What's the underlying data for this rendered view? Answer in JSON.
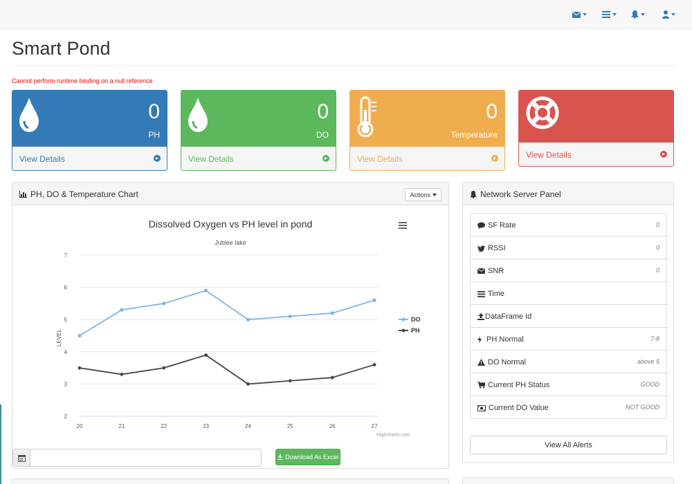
{
  "page": {
    "title": "Smart Pond",
    "error": "Cannot perform runtime binding on a null reference"
  },
  "navbar": {
    "icons": [
      "envelope-icon",
      "tasks-icon",
      "bell-icon",
      "user-icon"
    ]
  },
  "stats": [
    {
      "value": "0",
      "label": "PH",
      "link": "View Details",
      "color": "#337ab7",
      "icon": "drop-icon"
    },
    {
      "value": "0",
      "label": "DO",
      "link": "View Details",
      "color": "#5cb85c",
      "icon": "drop-icon"
    },
    {
      "value": "0",
      "label": "Temperature",
      "link": "View Details",
      "color": "#f0ad4e",
      "icon": "thermometer-icon"
    },
    {
      "value": "",
      "label": "",
      "link": "View Details",
      "color": "#d9534f",
      "icon": "life-ring-icon"
    }
  ],
  "chart_panel": {
    "heading": "PH, DO & Temperature Chart",
    "actions_label": "Actions",
    "download_label": "Download As Excel",
    "credits": "Highcharts.com"
  },
  "chart_data": {
    "type": "line",
    "title": "Dissolved Oxygen vs PH level in pond",
    "subtitle": "Jublee lake",
    "xlabel": "",
    "ylabel": "LEVEL",
    "x": [
      20,
      21,
      22,
      23,
      24,
      25,
      26,
      27
    ],
    "ylim": [
      2,
      7
    ],
    "yticks": [
      2,
      3,
      4,
      5,
      6,
      7
    ],
    "grid": true,
    "legend_position": "right",
    "series": [
      {
        "name": "DO",
        "color": "#7cb5ec",
        "values": [
          4.5,
          5.3,
          5.5,
          5.9,
          5.0,
          5.1,
          5.2,
          5.6
        ]
      },
      {
        "name": "PH",
        "color": "#434348",
        "values": [
          3.5,
          3.3,
          3.5,
          3.9,
          3.0,
          3.1,
          3.2,
          3.6
        ]
      }
    ]
  },
  "network_panel": {
    "heading": "Network Server Panel",
    "items": [
      {
        "label": "SF Rate",
        "value": "0",
        "icon": "comment-icon"
      },
      {
        "label": "RSSI",
        "value": "0",
        "icon": "twitter-icon"
      },
      {
        "label": "SNR",
        "value": "0",
        "icon": "envelope-icon"
      },
      {
        "label": "Time",
        "value": "",
        "icon": "tasks-icon"
      },
      {
        "label": "DataFrame Id",
        "value": "",
        "icon": "upload-icon"
      },
      {
        "label": "PH Normal",
        "value": "7-8",
        "icon": "bolt-icon"
      },
      {
        "label": "DO Normal",
        "value": "above 5",
        "icon": "warning-icon"
      },
      {
        "label": "Current PH Status",
        "value": "GOOD",
        "icon": "cart-icon"
      },
      {
        "label": "Current DO Value",
        "value": "NOT GOOD",
        "icon": "money-icon"
      }
    ],
    "alerts_button": "View All Alerts"
  }
}
